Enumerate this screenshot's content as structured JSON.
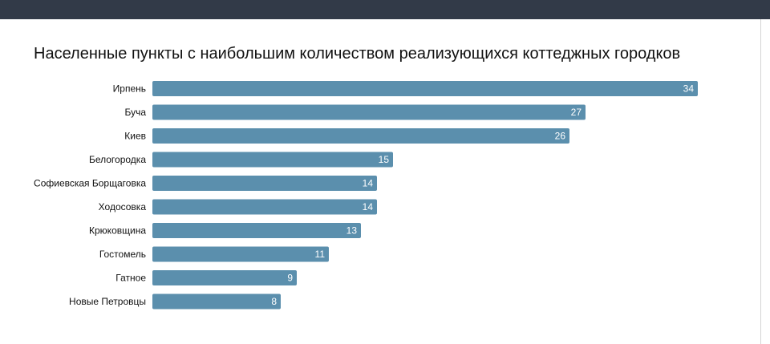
{
  "chart_data": {
    "type": "bar",
    "orientation": "horizontal",
    "title": "Населенные пункты с наибольшим количеством реализующихся коттеджных городков",
    "categories": [
      "Ирпень",
      "Буча",
      "Киев",
      "Белогородка",
      "Софиевская Борщаговка",
      "Ходосовка",
      "Крюковщина",
      "Гостомель",
      "Гатное",
      "Новые Петровцы"
    ],
    "values": [
      34,
      27,
      26,
      15,
      14,
      14,
      13,
      11,
      9,
      8
    ],
    "xlim": [
      0,
      34
    ],
    "grid": false,
    "legend": "none",
    "data_labels": "inside-end",
    "bar_color": "#5b8fad",
    "label_color": "#ffffff"
  },
  "colors": {
    "top_bar": "#323a48",
    "text": "#111111"
  }
}
